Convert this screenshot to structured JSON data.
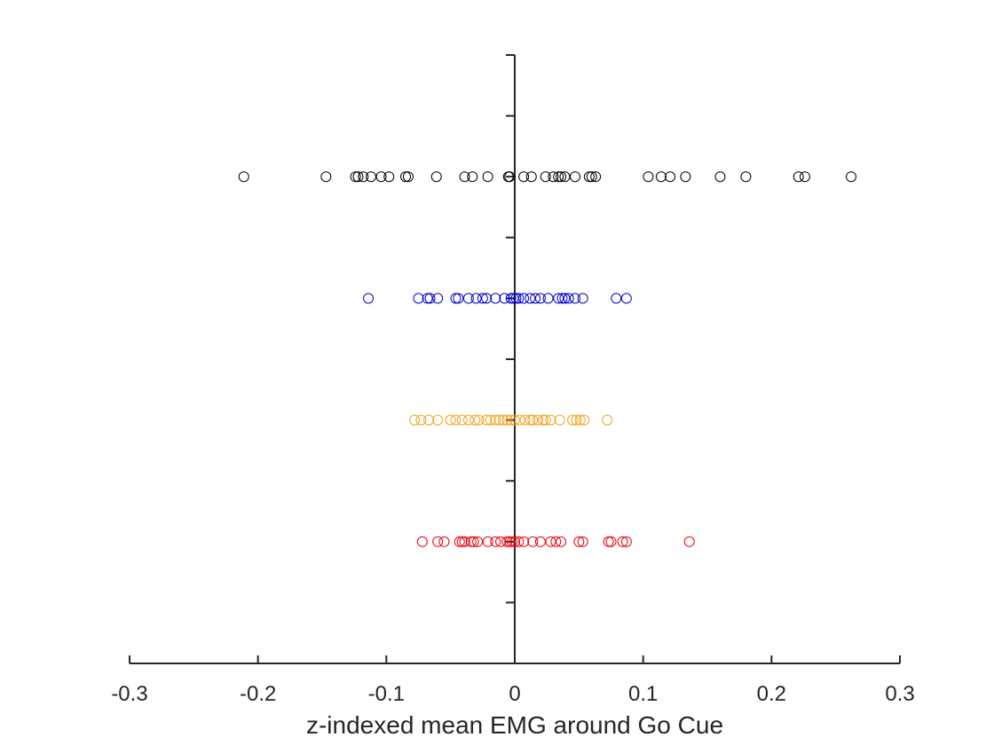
{
  "chart_data": {
    "type": "scatter",
    "title": "",
    "xlabel": "z-indexed mean EMG around Go Cue",
    "ylabel": "",
    "xlim": [
      -0.3,
      0.3
    ],
    "ylim": [
      0,
      10
    ],
    "x_ticks": [
      -0.3,
      -0.2,
      -0.1,
      0,
      0.1,
      0.2,
      0.3
    ],
    "x_tick_labels": [
      "-0.3",
      "-0.2",
      "-0.1",
      "0",
      "0.1",
      "0.2",
      "0.3"
    ],
    "y_ticks": [
      0,
      1,
      2,
      3,
      4,
      5,
      6,
      7,
      8,
      9,
      10
    ],
    "y_axis_at_x": 0,
    "grid": false,
    "legend": "none",
    "marker": "open-circle",
    "series": [
      {
        "color": "#000000",
        "y": 8,
        "x": [
          -0.211,
          -0.147,
          -0.124,
          -0.122,
          -0.118,
          -0.112,
          -0.104,
          -0.098,
          -0.085,
          -0.083,
          -0.061,
          -0.039,
          -0.033,
          -0.021,
          -0.005,
          -0.004,
          0.007,
          0.013,
          0.024,
          0.03,
          0.034,
          0.036,
          0.039,
          0.047,
          0.058,
          0.06,
          0.063,
          0.104,
          0.114,
          0.121,
          0.133,
          0.16,
          0.18,
          0.221,
          0.226,
          0.262
        ]
      },
      {
        "color": "#0000cc",
        "y": 6,
        "x": [
          -0.114,
          -0.075,
          -0.068,
          -0.066,
          -0.06,
          -0.046,
          -0.044,
          -0.036,
          -0.03,
          -0.025,
          -0.022,
          -0.015,
          -0.008,
          -0.003,
          -0.001,
          0.001,
          0.003,
          0.007,
          0.012,
          0.016,
          0.02,
          0.026,
          0.034,
          0.037,
          0.039,
          0.042,
          0.047,
          0.053,
          0.079,
          0.087
        ]
      },
      {
        "color": "#f5a623",
        "y": 4,
        "x": [
          -0.078,
          -0.073,
          -0.067,
          -0.06,
          -0.05,
          -0.046,
          -0.041,
          -0.036,
          -0.031,
          -0.028,
          -0.022,
          -0.019,
          -0.015,
          -0.012,
          -0.009,
          -0.006,
          -0.003,
          0.0,
          0.004,
          0.008,
          0.012,
          0.014,
          0.018,
          0.022,
          0.024,
          0.028,
          0.035,
          0.045,
          0.048,
          0.051,
          0.054,
          0.072
        ]
      },
      {
        "color": "#e8000b",
        "y": 2,
        "x": [
          -0.072,
          -0.06,
          -0.055,
          -0.043,
          -0.041,
          -0.039,
          -0.034,
          -0.032,
          -0.029,
          -0.021,
          -0.015,
          -0.011,
          -0.006,
          -0.004,
          -0.002,
          0.0,
          0.003,
          0.007,
          0.014,
          0.02,
          0.028,
          0.032,
          0.036,
          0.05,
          0.053,
          0.073,
          0.075,
          0.084,
          0.087,
          0.136
        ]
      }
    ]
  }
}
